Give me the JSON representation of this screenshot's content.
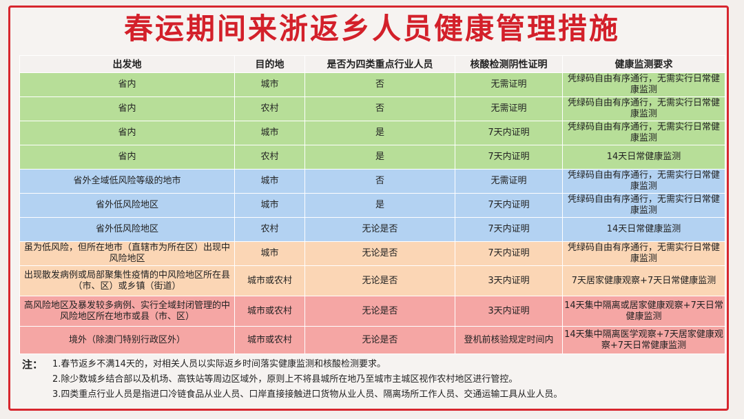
{
  "title": "春运期间来浙返乡人员健康管理措施",
  "headers": [
    "出发地",
    "目的地",
    "是否为四类重点行业人员",
    "核酸检测阴性证明",
    "健康监测要求"
  ],
  "rows": [
    {
      "group": "green",
      "origin": "省内",
      "dest": "城市",
      "key": "否",
      "test": "无需证明",
      "health": "凭绿码自由有序通行，无需实行日常健康监测"
    },
    {
      "group": "green",
      "origin": "省内",
      "dest": "农村",
      "key": "否",
      "test": "无需证明",
      "health": "凭绿码自由有序通行，无需实行日常健康监测"
    },
    {
      "group": "green",
      "origin": "省内",
      "dest": "城市",
      "key": "是",
      "test": "7天内证明",
      "health": "凭绿码自由有序通行，无需实行日常健康监测"
    },
    {
      "group": "green",
      "origin": "省内",
      "dest": "农村",
      "key": "是",
      "test": "7天内证明",
      "health": "14天日常健康监测"
    },
    {
      "group": "blue",
      "origin": "省外全域低风险等级的地市",
      "dest": "城市",
      "key": "否",
      "test": "无需证明",
      "health": "凭绿码自由有序通行，无需实行日常健康监测"
    },
    {
      "group": "blue",
      "origin": "省外低风险地区",
      "dest": "城市",
      "key": "是",
      "test": "7天内证明",
      "health": "凭绿码自由有序通行，无需实行日常健康监测"
    },
    {
      "group": "blue",
      "origin": "省外低风险地区",
      "dest": "农村",
      "key": "无论是否",
      "test": "7天内证明",
      "health": "14天日常健康监测"
    },
    {
      "group": "orange",
      "origin": "虽为低风险，但所在地市（直辖市为所在区）出现中风险地区",
      "dest": "城市",
      "key": "无论是否",
      "test": "7天内证明",
      "health": "凭绿码自由有序通行，无需实行日常健康监测"
    },
    {
      "group": "orange",
      "origin": "出现散发病例或局部聚集性疫情的中风险地区所在县（市、区）或乡镇（街道）",
      "dest": "城市或农村",
      "key": "无论是否",
      "test": "3天内证明",
      "health": "7天居家健康观察+7天日常健康监测"
    },
    {
      "group": "red",
      "origin": "高风险地区及暴发较多病例、实行全域封闭管理的中风险地区所在地市或县（市、区）",
      "dest": "城市或农村",
      "key": "无论是否",
      "test": "3天内证明",
      "health": "14天集中隔离或居家健康观察+7天日常健康监测"
    },
    {
      "group": "red",
      "origin": "境外（除澳门特别行政区外）",
      "dest": "城市或农村",
      "key": "无论是否",
      "test": "登机前核验规定时间内",
      "health": "14天集中隔离医学观察+7天居家健康观察+7天日常健康监测"
    }
  ],
  "notes_label": "注：",
  "notes": [
    "1.春节返乡不满14天的，对相关人员以实际返乡时间落实健康监测和核酸检测要求。",
    "2.除少数城乡结合部以及机场、高铁站等周边区域外，原则上不将县城所在地乃至城市主城区视作农村地区进行管控。",
    "3.四类重点行业人员是指进口冷链食品从业人员、口岸直接接触进口货物从业人员、隔离场所工作人员、交通运输工具从业人员。"
  ]
}
